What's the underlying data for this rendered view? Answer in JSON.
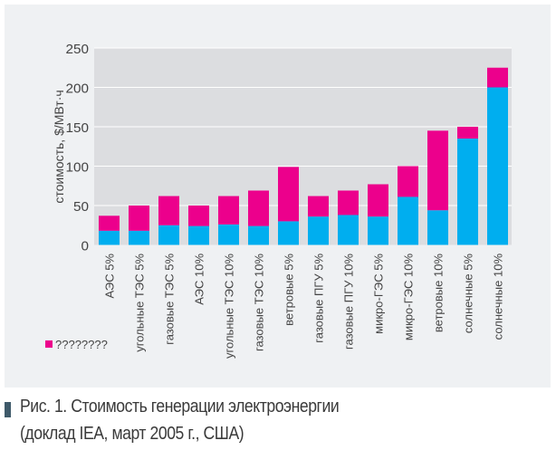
{
  "chart_data": {
    "type": "bar",
    "stacked": true,
    "categories": [
      "АЭС 5%",
      "угольные ТЭС 5%",
      "газовые ТЭС 5%",
      "АЭС 10%",
      "угольные ТЭС 10%",
      "газовые ТЭС 10%",
      "ветровые 5%",
      "газовые ПГУ 5%",
      "газовые ПГУ 10%",
      "микро-ГЭС 5%",
      "микро-ГЭС 10%",
      "ветровые 10%",
      "солнечные 5%",
      "солнечные 10%"
    ],
    "series": [
      {
        "values": [
          18,
          18,
          25,
          24,
          26,
          24,
          30,
          36,
          38,
          36,
          61,
          44,
          135,
          200
        ],
        "color": "#00aeef"
      },
      {
        "name": "????????",
        "values": [
          19,
          32,
          37,
          26,
          36,
          45,
          69,
          26,
          31,
          41,
          39,
          101,
          15,
          25
        ],
        "color": "#ec008c"
      }
    ],
    "ylabel": "стоимость, $/МВт·ч",
    "ylim": [
      0,
      250
    ],
    "yticks": [
      0,
      50,
      100,
      150,
      200,
      250
    ],
    "grid": true,
    "legend": "bottom-left"
  },
  "caption": {
    "line1": "Рис. 1. Стоимость генерации электроэнергии",
    "line2": "(доклад IEA, март 2005 г., США)"
  }
}
